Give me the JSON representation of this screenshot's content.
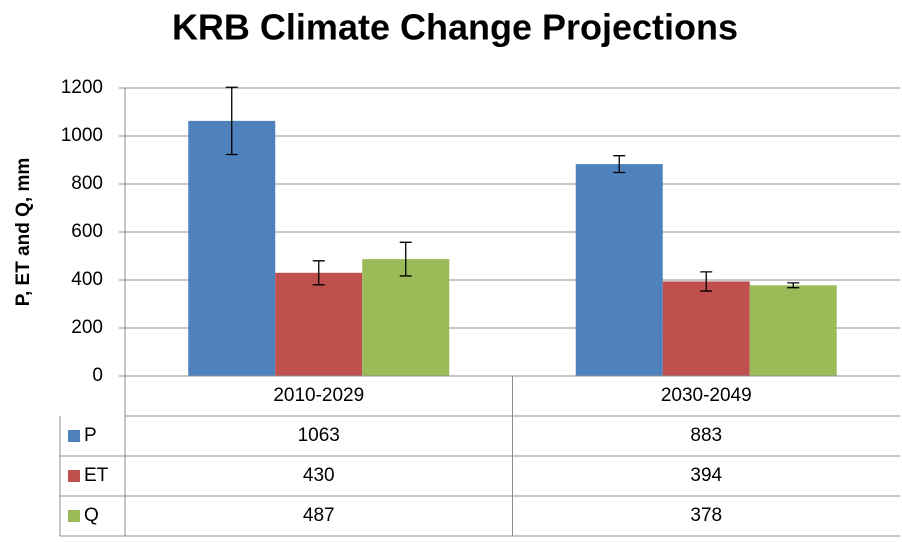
{
  "chart_data": {
    "type": "bar",
    "title": "KRB Climate Change Projections",
    "y_label": "P, ET and Q, mm",
    "categories": [
      "2010-2029",
      "2030-2049"
    ],
    "series": [
      {
        "name": "P",
        "color": "#4f81bd",
        "values": [
          1063,
          883
        ],
        "errors": [
          140,
          35
        ]
      },
      {
        "name": "ET",
        "color": "#c0504d",
        "values": [
          430,
          394
        ],
        "errors": [
          50,
          40
        ]
      },
      {
        "name": "Q",
        "color": "#9bbb59",
        "values": [
          487,
          378
        ],
        "errors": [
          70,
          10
        ]
      }
    ],
    "ylim": [
      0,
      1200
    ],
    "yticks": [
      0,
      200,
      400,
      600,
      800,
      1000,
      1200
    ],
    "grid": true,
    "data_table": true
  }
}
